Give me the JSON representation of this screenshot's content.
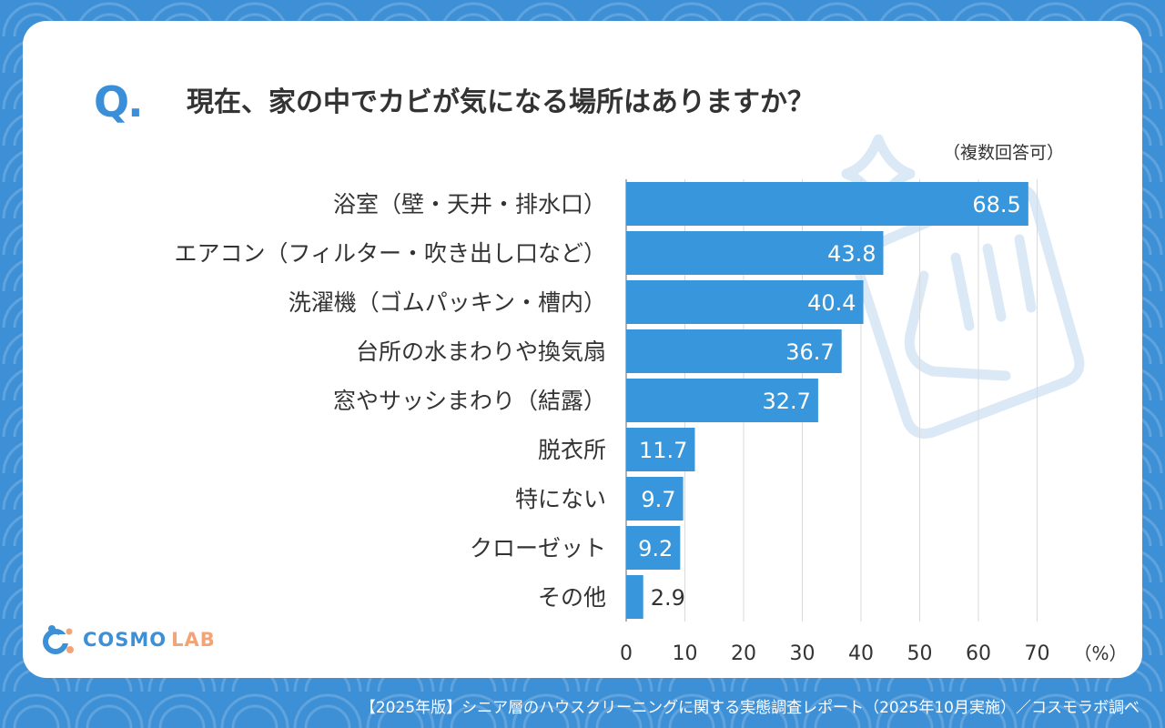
{
  "question": {
    "mark": "Q",
    "dot": ".",
    "text": "現在、家の中でカビが気になる場所はありますか？",
    "note": "（複数回答可）"
  },
  "chart_data": {
    "type": "bar",
    "orientation": "horizontal",
    "categories": [
      "浴室（壁・天井・排水口）",
      "エアコン（フィルター・吹き出し口など）",
      "洗濯機（ゴムパッキン・槽内）",
      "台所の水まわりや換気扇",
      "窓やサッシまわり（結露）",
      "脱衣所",
      "特にない",
      "クローゼット",
      "その他"
    ],
    "values": [
      68.5,
      43.8,
      40.4,
      36.7,
      32.7,
      11.7,
      9.7,
      9.2,
      2.9
    ],
    "value_labels": [
      "68.5",
      "43.8",
      "40.4",
      "36.7",
      "32.7",
      "11.7",
      "9.7",
      "9.2",
      "2.9"
    ],
    "xlim": [
      0,
      70
    ],
    "xticks": [
      "0",
      "10",
      "20",
      "30",
      "40",
      "50",
      "60",
      "70"
    ],
    "xunit": "（%）",
    "grid": true,
    "bar_color": "#3796dc"
  },
  "logo": {
    "cosmo": "COSMO",
    "lab": "LAB"
  },
  "footer": {
    "text": "【2025年版】シニア層のハウスクリーニングに関する実態調査レポート（2025年10月実施）／コスモラボ調べ"
  },
  "colors": {
    "accent": "#3b8fd9",
    "logo_orange": "#f2a477",
    "background": "#3d8fd6"
  }
}
